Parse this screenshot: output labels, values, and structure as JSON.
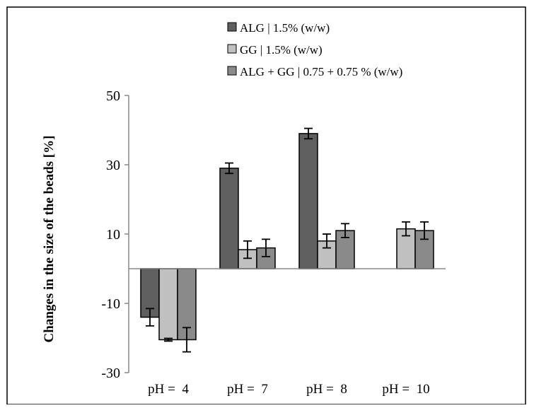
{
  "chart_data": {
    "type": "bar",
    "title": "",
    "xlabel": "",
    "ylabel": "Changes in the size of the beads [%]",
    "ylim": [
      -30,
      50
    ],
    "yticks": [
      50,
      30,
      10,
      -10,
      -30
    ],
    "grid": false,
    "legend_position": "top-right",
    "categories": [
      "pH =  4",
      "pH =  7",
      "pH =  8",
      "pH =  10"
    ],
    "series": [
      {
        "name": "ALG | 1.5% (w/w)",
        "color": "#5f5f5f",
        "values": [
          -14,
          29,
          39,
          null
        ],
        "errors": [
          2.5,
          1.5,
          1.5,
          null
        ]
      },
      {
        "name": "GG | 1.5% (w/w)",
        "color": "#c0c0c0",
        "values": [
          -20.5,
          5.5,
          8,
          11.5
        ],
        "errors": [
          0.4,
          2.5,
          2,
          2
        ]
      },
      {
        "name": "ALG + GG | 0.75 + 0.75 % (w/w)",
        "color": "#8a8a8a",
        "values": [
          -20.5,
          6,
          11,
          11
        ],
        "errors": [
          3.5,
          2.5,
          2,
          2.5
        ]
      }
    ]
  }
}
